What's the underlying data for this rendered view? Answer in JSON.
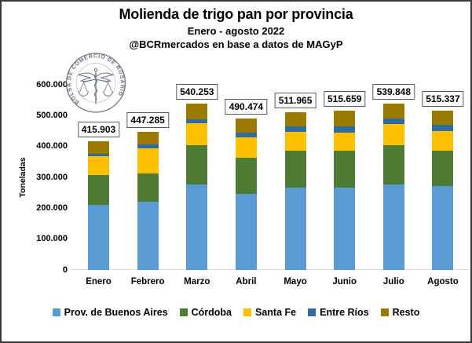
{
  "chart_data": {
    "type": "bar",
    "stacked": true,
    "title": "Molienda de trigo pan por provincia",
    "subtitle": "Enero - agosto 2022",
    "attribution": "@BCRmercados en base a datos de MAGyP",
    "ylabel": "Toneladas",
    "ylim": [
      0,
      600000
    ],
    "ytick_labels": [
      "0",
      "100.000",
      "200.000",
      "300.000",
      "400.000",
      "500.000",
      "600.000"
    ],
    "grid": false,
    "legend_position": "bottom",
    "categories": [
      "Enero",
      "Febrero",
      "Marzo",
      "Abril",
      "Mayo",
      "Junio",
      "Julio",
      "Agosto"
    ],
    "series": [
      {
        "name": "Prov. de Buenos Aires",
        "color": "#5B9BD5",
        "values": [
          211000,
          220000,
          276000,
          246000,
          267000,
          267000,
          278000,
          272000
        ]
      },
      {
        "name": "Córdoba",
        "color": "#4E7A33",
        "values": [
          97000,
          93500,
          128500,
          118500,
          119000,
          120500,
          126000,
          115500
        ]
      },
      {
        "name": "Santa Fe",
        "color": "#FFC000",
        "values": [
          59500,
          80000,
          70500,
          65000,
          62000,
          57500,
          68500,
          62500
        ]
      },
      {
        "name": "Entre Ríos",
        "color": "#2E6DA4",
        "values": [
          9000,
          12500,
          12500,
          15500,
          16500,
          21500,
          19000,
          19500
        ]
      },
      {
        "name": "Resto",
        "color": "#9A7A00",
        "values": [
          39403,
          41285,
          52753,
          45474,
          47465,
          49159,
          48348,
          45837
        ]
      }
    ],
    "total_labels": [
      "415.903",
      "447.285",
      "540.253",
      "490.474",
      "511.965",
      "515.659",
      "539.848",
      "515.337"
    ]
  },
  "logo": {
    "ring_text": "BOLSA DE COMERCIO DE ROSARIO"
  },
  "colors": {
    "frame_border": "#3a3a3a",
    "axis_line": "#d9d9d9",
    "label_box_border": "#595959",
    "seal_ink": "#5c6672"
  }
}
